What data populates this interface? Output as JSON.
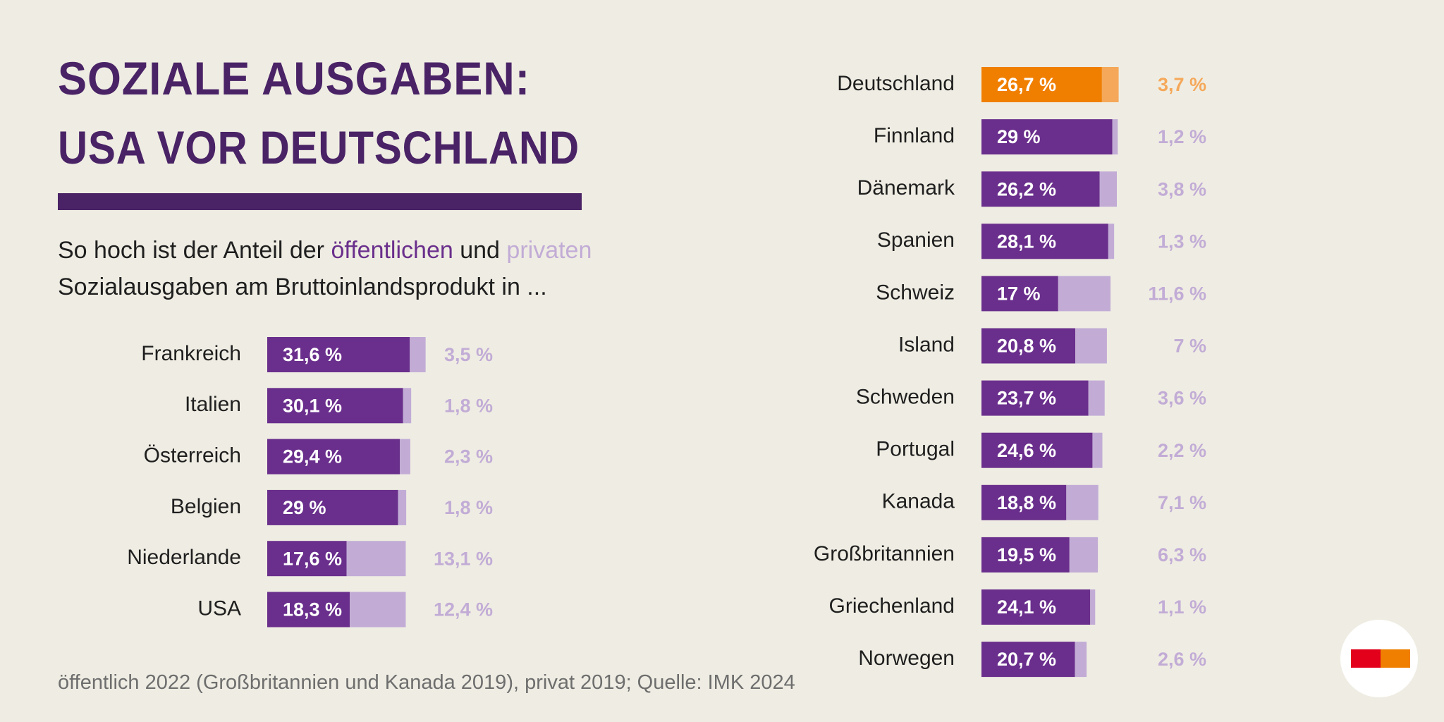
{
  "header": {
    "title_lines": [
      "SOZIALE AUSGABEN:",
      "USA VOR DEUTSCHLAND"
    ],
    "subtitle": [
      "So hoch ist der Anteil der",
      "und",
      "Sozialausgaben am Bruttoinlandsprodukt in ..."
    ],
    "note": "öffentlich 2022 (Großbritannien und Kanada 2019), privat 2019; Quelle: IMK 2024"
  },
  "chart_data": [
    {
      "type": "stacked-bar",
      "orientation": "horizontal",
      "categories": [
        "Frankreich",
        "Italien",
        "Österreich",
        "Belgien",
        "Niederlande",
        "USA"
      ],
      "series": [
        {
          "name": "öffentlichen",
          "color": "#6a2f8c",
          "values": [
            31.6,
            30.1,
            29.4,
            29,
            17.6,
            18.3
          ],
          "value_labels": [
            "31,6 %",
            "30,1 %",
            "29,4 %",
            "29 %",
            "17,6 %",
            "18,3 %"
          ]
        },
        {
          "name": "privaten",
          "color": "#c2acd6",
          "values": [
            3.5,
            1.8,
            2.3,
            1.8,
            13.1,
            12.4
          ],
          "value_labels": [
            "3,5 %",
            "1,8 %",
            "2,3 %",
            "1,8 %",
            "13,1 %",
            "12,4 %"
          ]
        }
      ]
    },
    {
      "type": "stacked-bar",
      "orientation": "horizontal",
      "categories": [
        "Deutschland",
        "Finnland",
        "Dänemark",
        "Spanien",
        "Schweiz",
        "Island",
        "Schweden",
        "Portugal",
        "Kanada",
        "Großbritannien",
        "Griechenland",
        "Norwegen"
      ],
      "series": [
        {
          "color": "#6a2f8c",
          "colors": [
            "#f07f00",
            "#6a2f8c",
            "#6a2f8c",
            "#6a2f8c",
            "#6a2f8c",
            "#6a2f8c",
            "#6a2f8c",
            "#6a2f8c",
            "#6a2f8c",
            "#6a2f8c",
            "#6a2f8c",
            "#6a2f8c"
          ],
          "values": [
            26.7,
            29,
            26.2,
            28.1,
            17,
            20.8,
            23.7,
            24.6,
            18.8,
            19.5,
            24.1,
            20.7
          ],
          "value_labels": [
            "26,7 %",
            "29 %",
            "26,2 %",
            "28,1 %",
            "17 %",
            "20,8 %",
            "23,7 %",
            "24,6 %",
            "18,8 %",
            "19,5 %",
            "24,1 %",
            "20,7 %"
          ]
        },
        {
          "color": "#c2acd6",
          "colors": [
            "#f5a85a",
            "#c2acd6",
            "#c2acd6",
            "#c2acd6",
            "#c2acd6",
            "#c2acd6",
            "#c2acd6",
            "#c2acd6",
            "#c2acd6",
            "#c2acd6",
            "#c2acd6",
            "#c2acd6"
          ],
          "values": [
            3.7,
            1.2,
            3.8,
            1.3,
            11.6,
            7,
            3.6,
            2.2,
            7.1,
            6.3,
            1.1,
            2.6
          ],
          "value_labels": [
            "3,7 %",
            "1,2 %",
            "3,8 %",
            "1,3 %",
            "11,6 %",
            "7 %",
            "3,6 %",
            "2,2 %",
            "7,1 %",
            "6,3 %",
            "1,1 %",
            "2,6 %"
          ]
        }
      ]
    }
  ]
}
